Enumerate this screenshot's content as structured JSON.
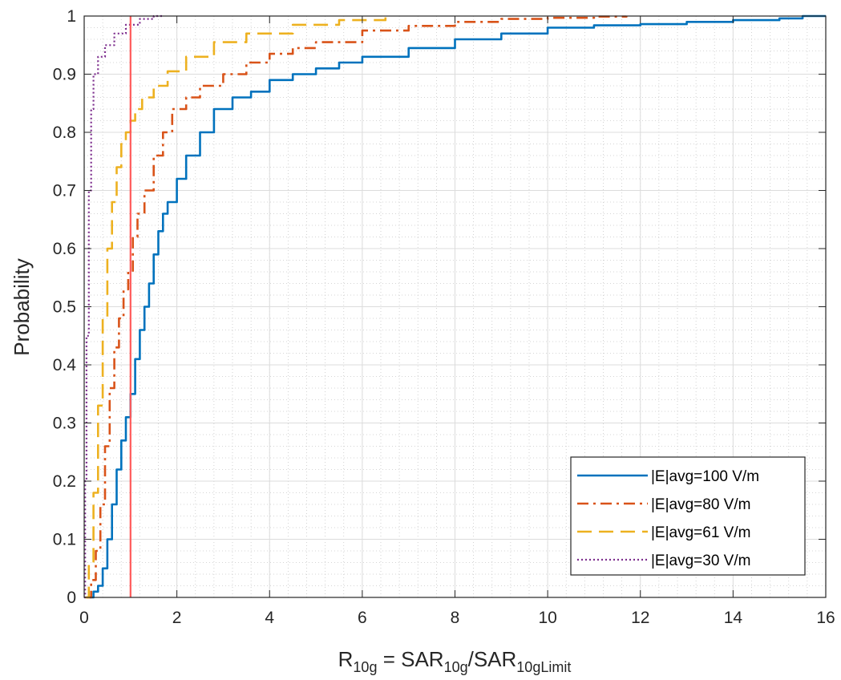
{
  "chart_data": {
    "type": "line",
    "title": "",
    "xlabel": {
      "base": "R",
      "sub1": "10g",
      "eq": " = SAR",
      "sub2": "10g",
      "slash": "/SAR",
      "sub3": "10gLimit"
    },
    "ylabel": "Probability",
    "xlim": [
      0,
      16
    ],
    "ylim": [
      0,
      1
    ],
    "x_ticks": [
      "0",
      "2",
      "4",
      "6",
      "8",
      "10",
      "12",
      "14",
      "16"
    ],
    "y_ticks": [
      "0",
      "0.1",
      "0.2",
      "0.3",
      "0.4",
      "0.5",
      "0.6",
      "0.7",
      "0.8",
      "0.9",
      "1"
    ],
    "grid": true,
    "minor_grid": true,
    "legend_position": "bottom-right",
    "vertical_line": {
      "x": 1,
      "color": "#ff5a5a"
    },
    "series": [
      {
        "name": "|E|avg=100 V/m",
        "color": "#0072bd",
        "dash": "solid",
        "points": [
          [
            0.12,
            0
          ],
          [
            0.2,
            0.01
          ],
          [
            0.3,
            0.02
          ],
          [
            0.4,
            0.05
          ],
          [
            0.5,
            0.1
          ],
          [
            0.6,
            0.16
          ],
          [
            0.7,
            0.22
          ],
          [
            0.8,
            0.27
          ],
          [
            0.9,
            0.31
          ],
          [
            1.0,
            0.35
          ],
          [
            1.1,
            0.41
          ],
          [
            1.2,
            0.46
          ],
          [
            1.3,
            0.5
          ],
          [
            1.4,
            0.54
          ],
          [
            1.5,
            0.59
          ],
          [
            1.6,
            0.63
          ],
          [
            1.7,
            0.66
          ],
          [
            1.8,
            0.68
          ],
          [
            2.0,
            0.72
          ],
          [
            2.2,
            0.76
          ],
          [
            2.5,
            0.8
          ],
          [
            2.8,
            0.84
          ],
          [
            3.2,
            0.86
          ],
          [
            3.6,
            0.87
          ],
          [
            4.0,
            0.89
          ],
          [
            4.5,
            0.9
          ],
          [
            5.0,
            0.91
          ],
          [
            5.5,
            0.92
          ],
          [
            6.0,
            0.93
          ],
          [
            7.0,
            0.945
          ],
          [
            8.0,
            0.96
          ],
          [
            9.0,
            0.97
          ],
          [
            10.0,
            0.98
          ],
          [
            11.0,
            0.984
          ],
          [
            12.0,
            0.986
          ],
          [
            13.0,
            0.99
          ],
          [
            14.0,
            0.993
          ],
          [
            15.0,
            0.996
          ],
          [
            15.5,
            1.0
          ],
          [
            16.0,
            1.0
          ]
        ]
      },
      {
        "name": "|E|avg=80 V/m",
        "color": "#d95319",
        "dash": "dashdot",
        "points": [
          [
            0.05,
            0
          ],
          [
            0.15,
            0.03
          ],
          [
            0.25,
            0.08
          ],
          [
            0.35,
            0.16
          ],
          [
            0.45,
            0.26
          ],
          [
            0.55,
            0.36
          ],
          [
            0.65,
            0.43
          ],
          [
            0.75,
            0.48
          ],
          [
            0.85,
            0.53
          ],
          [
            0.95,
            0.56
          ],
          [
            1.05,
            0.62
          ],
          [
            1.15,
            0.66
          ],
          [
            1.3,
            0.7
          ],
          [
            1.5,
            0.76
          ],
          [
            1.7,
            0.8
          ],
          [
            1.9,
            0.84
          ],
          [
            2.2,
            0.86
          ],
          [
            2.5,
            0.88
          ],
          [
            3.0,
            0.9
          ],
          [
            3.5,
            0.92
          ],
          [
            4.0,
            0.935
          ],
          [
            4.5,
            0.945
          ],
          [
            5.0,
            0.955
          ],
          [
            6.0,
            0.975
          ],
          [
            7.0,
            0.983
          ],
          [
            8.0,
            0.99
          ],
          [
            9.0,
            0.995
          ],
          [
            10.0,
            0.997
          ],
          [
            11.0,
            0.999
          ],
          [
            11.7,
            1.0
          ]
        ]
      },
      {
        "name": "|E|avg=61 V/m",
        "color": "#edb120",
        "dash": "dashed",
        "points": [
          [
            0.02,
            0
          ],
          [
            0.1,
            0.06
          ],
          [
            0.2,
            0.18
          ],
          [
            0.3,
            0.33
          ],
          [
            0.4,
            0.48
          ],
          [
            0.5,
            0.6
          ],
          [
            0.6,
            0.68
          ],
          [
            0.7,
            0.74
          ],
          [
            0.8,
            0.78
          ],
          [
            0.9,
            0.8
          ],
          [
            1.0,
            0.82
          ],
          [
            1.1,
            0.84
          ],
          [
            1.25,
            0.86
          ],
          [
            1.5,
            0.88
          ],
          [
            1.8,
            0.905
          ],
          [
            2.2,
            0.93
          ],
          [
            2.8,
            0.955
          ],
          [
            3.5,
            0.97
          ],
          [
            4.5,
            0.985
          ],
          [
            5.5,
            0.993
          ],
          [
            6.5,
            1.0
          ]
        ]
      },
      {
        "name": "|E|avg=30 V/m",
        "color": "#7e2f8e",
        "dash": "dotted",
        "points": [
          [
            0,
            0
          ],
          [
            0.02,
            0.2
          ],
          [
            0.05,
            0.45
          ],
          [
            0.1,
            0.7
          ],
          [
            0.15,
            0.84
          ],
          [
            0.2,
            0.9
          ],
          [
            0.3,
            0.93
          ],
          [
            0.45,
            0.95
          ],
          [
            0.65,
            0.97
          ],
          [
            0.9,
            0.985
          ],
          [
            1.2,
            0.995
          ],
          [
            1.5,
            1.0
          ],
          [
            1.7,
            1.0
          ]
        ]
      }
    ]
  }
}
